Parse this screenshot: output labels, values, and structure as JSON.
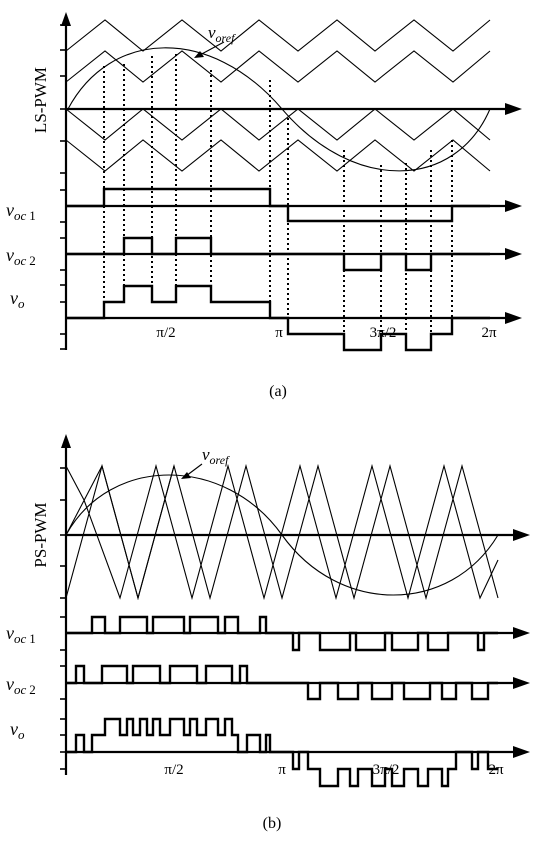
{
  "panel_a": {
    "ylabel": "LS-PWM",
    "ref_label": "v",
    "ref_sub": "oref",
    "row1_main": "v",
    "row1_sub": "oc",
    "row1_num": "1",
    "row2_main": "v",
    "row2_sub": "oc",
    "row2_num": "2",
    "row3_main": "v",
    "row3_sub": "o",
    "ticks": [
      "π/2",
      "π",
      "3π/2",
      "2π"
    ],
    "caption": "(a)"
  },
  "panel_b": {
    "ylabel": "PS-PWM",
    "ref_label": "v",
    "ref_sub": "oref",
    "row1_main": "v",
    "row1_sub": "oc",
    "row1_num": "1",
    "row2_main": "v",
    "row2_sub": "oc",
    "row2_num": "2",
    "row3_main": "v",
    "row3_sub": "o",
    "ticks": [
      "π/2",
      "π",
      "3π/2",
      "2π"
    ],
    "caption": "(b)"
  }
}
